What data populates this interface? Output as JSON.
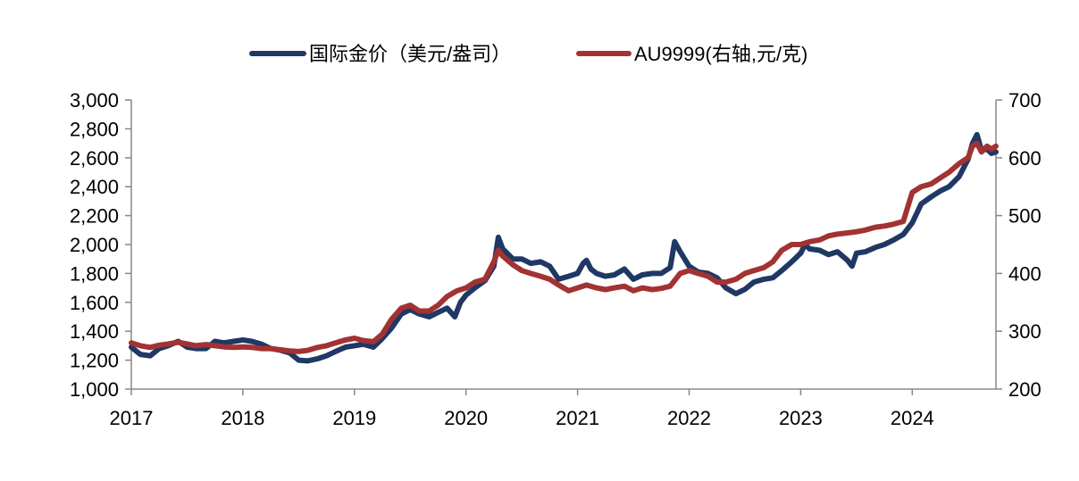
{
  "chart_data": {
    "type": "line",
    "title": "",
    "legend_position": "top-center",
    "grid": false,
    "x_axis": {
      "range": [
        2017.0,
        2024.75
      ],
      "ticks": [
        {
          "value": 2017,
          "label": "2017"
        },
        {
          "value": 2018,
          "label": "2018"
        },
        {
          "value": 2019,
          "label": "2019"
        },
        {
          "value": 2020,
          "label": "2020"
        },
        {
          "value": 2021,
          "label": "2021"
        },
        {
          "value": 2022,
          "label": "2022"
        },
        {
          "value": 2023,
          "label": "2023"
        },
        {
          "value": 2024,
          "label": "2024"
        }
      ]
    },
    "y_left": {
      "range": [
        1000,
        3000
      ],
      "ticks": [
        {
          "value": 1000,
          "label": "1,000"
        },
        {
          "value": 1200,
          "label": "1,200"
        },
        {
          "value": 1400,
          "label": "1,400"
        },
        {
          "value": 1600,
          "label": "1,600"
        },
        {
          "value": 1800,
          "label": "1,800"
        },
        {
          "value": 2000,
          "label": "2,000"
        },
        {
          "value": 2200,
          "label": "2,200"
        },
        {
          "value": 2400,
          "label": "2,400"
        },
        {
          "value": 2600,
          "label": "2,600"
        },
        {
          "value": 2800,
          "label": "2,800"
        },
        {
          "value": 3000,
          "label": "3,000"
        }
      ]
    },
    "y_right": {
      "range": [
        200,
        700
      ],
      "ticks": [
        {
          "value": 200,
          "label": "200"
        },
        {
          "value": 300,
          "label": "300"
        },
        {
          "value": 400,
          "label": "400"
        },
        {
          "value": 500,
          "label": "500"
        },
        {
          "value": 600,
          "label": "600"
        },
        {
          "value": 700,
          "label": "700"
        }
      ]
    },
    "series": [
      {
        "name": "国际金价（美元/盎司）",
        "axis": "left",
        "color": "#1f3864",
        "points": [
          [
            2017.0,
            1290
          ],
          [
            2017.08,
            1240
          ],
          [
            2017.17,
            1230
          ],
          [
            2017.25,
            1280
          ],
          [
            2017.33,
            1300
          ],
          [
            2017.42,
            1330
          ],
          [
            2017.5,
            1290
          ],
          [
            2017.58,
            1280
          ],
          [
            2017.67,
            1280
          ],
          [
            2017.75,
            1330
          ],
          [
            2017.83,
            1320
          ],
          [
            2017.92,
            1330
          ],
          [
            2018.0,
            1340
          ],
          [
            2018.08,
            1330
          ],
          [
            2018.17,
            1310
          ],
          [
            2018.25,
            1280
          ],
          [
            2018.33,
            1270
          ],
          [
            2018.42,
            1250
          ],
          [
            2018.5,
            1200
          ],
          [
            2018.58,
            1195
          ],
          [
            2018.67,
            1210
          ],
          [
            2018.75,
            1230
          ],
          [
            2018.83,
            1260
          ],
          [
            2018.92,
            1290
          ],
          [
            2019.0,
            1300
          ],
          [
            2019.08,
            1310
          ],
          [
            2019.17,
            1290
          ],
          [
            2019.25,
            1350
          ],
          [
            2019.33,
            1420
          ],
          [
            2019.42,
            1520
          ],
          [
            2019.5,
            1550
          ],
          [
            2019.58,
            1520
          ],
          [
            2019.67,
            1500
          ],
          [
            2019.75,
            1530
          ],
          [
            2019.83,
            1560
          ],
          [
            2019.9,
            1500
          ],
          [
            2019.95,
            1600
          ],
          [
            2020.0,
            1650
          ],
          [
            2020.08,
            1700
          ],
          [
            2020.17,
            1750
          ],
          [
            2020.25,
            1850
          ],
          [
            2020.29,
            2050
          ],
          [
            2020.33,
            1970
          ],
          [
            2020.42,
            1900
          ],
          [
            2020.5,
            1900
          ],
          [
            2020.58,
            1870
          ],
          [
            2020.67,
            1880
          ],
          [
            2020.75,
            1850
          ],
          [
            2020.83,
            1760
          ],
          [
            2020.92,
            1780
          ],
          [
            2021.0,
            1800
          ],
          [
            2021.05,
            1870
          ],
          [
            2021.08,
            1890
          ],
          [
            2021.12,
            1830
          ],
          [
            2021.17,
            1800
          ],
          [
            2021.25,
            1780
          ],
          [
            2021.33,
            1790
          ],
          [
            2021.42,
            1830
          ],
          [
            2021.5,
            1760
          ],
          [
            2021.58,
            1790
          ],
          [
            2021.67,
            1800
          ],
          [
            2021.75,
            1800
          ],
          [
            2021.83,
            1840
          ],
          [
            2021.87,
            2020
          ],
          [
            2021.92,
            1950
          ],
          [
            2022.0,
            1850
          ],
          [
            2022.08,
            1810
          ],
          [
            2022.17,
            1800
          ],
          [
            2022.25,
            1770
          ],
          [
            2022.33,
            1700
          ],
          [
            2022.42,
            1660
          ],
          [
            2022.5,
            1690
          ],
          [
            2022.58,
            1740
          ],
          [
            2022.67,
            1760
          ],
          [
            2022.75,
            1770
          ],
          [
            2022.83,
            1820
          ],
          [
            2022.92,
            1880
          ],
          [
            2023.0,
            1940
          ],
          [
            2023.04,
            2000
          ],
          [
            2023.08,
            1970
          ],
          [
            2023.17,
            1960
          ],
          [
            2023.25,
            1930
          ],
          [
            2023.33,
            1950
          ],
          [
            2023.42,
            1890
          ],
          [
            2023.46,
            1850
          ],
          [
            2023.5,
            1940
          ],
          [
            2023.58,
            1950
          ],
          [
            2023.67,
            1980
          ],
          [
            2023.75,
            2000
          ],
          [
            2023.83,
            2030
          ],
          [
            2023.92,
            2070
          ],
          [
            2024.0,
            2150
          ],
          [
            2024.08,
            2280
          ],
          [
            2024.17,
            2330
          ],
          [
            2024.25,
            2370
          ],
          [
            2024.33,
            2400
          ],
          [
            2024.42,
            2470
          ],
          [
            2024.5,
            2590
          ],
          [
            2024.54,
            2700
          ],
          [
            2024.58,
            2760
          ],
          [
            2024.62,
            2650
          ],
          [
            2024.67,
            2660
          ],
          [
            2024.71,
            2630
          ],
          [
            2024.75,
            2640
          ]
        ]
      },
      {
        "name": "AU9999(右轴,元/克)",
        "axis": "right",
        "color": "#a33232",
        "points": [
          [
            2017.0,
            280
          ],
          [
            2017.08,
            275
          ],
          [
            2017.17,
            272
          ],
          [
            2017.25,
            276
          ],
          [
            2017.33,
            278
          ],
          [
            2017.42,
            281
          ],
          [
            2017.5,
            278
          ],
          [
            2017.58,
            275
          ],
          [
            2017.67,
            277
          ],
          [
            2017.75,
            275
          ],
          [
            2017.83,
            273
          ],
          [
            2017.92,
            272
          ],
          [
            2018.0,
            273
          ],
          [
            2018.08,
            272
          ],
          [
            2018.17,
            270
          ],
          [
            2018.25,
            270
          ],
          [
            2018.33,
            268
          ],
          [
            2018.42,
            266
          ],
          [
            2018.5,
            265
          ],
          [
            2018.58,
            267
          ],
          [
            2018.67,
            272
          ],
          [
            2018.75,
            275
          ],
          [
            2018.83,
            280
          ],
          [
            2018.92,
            285
          ],
          [
            2019.0,
            288
          ],
          [
            2019.08,
            284
          ],
          [
            2019.17,
            282
          ],
          [
            2019.25,
            295
          ],
          [
            2019.33,
            320
          ],
          [
            2019.42,
            340
          ],
          [
            2019.5,
            345
          ],
          [
            2019.58,
            335
          ],
          [
            2019.67,
            335
          ],
          [
            2019.75,
            345
          ],
          [
            2019.83,
            360
          ],
          [
            2019.92,
            370
          ],
          [
            2020.0,
            375
          ],
          [
            2020.08,
            385
          ],
          [
            2020.17,
            390
          ],
          [
            2020.25,
            420
          ],
          [
            2020.29,
            440
          ],
          [
            2020.33,
            430
          ],
          [
            2020.42,
            415
          ],
          [
            2020.5,
            405
          ],
          [
            2020.58,
            400
          ],
          [
            2020.67,
            395
          ],
          [
            2020.75,
            390
          ],
          [
            2020.83,
            380
          ],
          [
            2020.92,
            370
          ],
          [
            2021.0,
            375
          ],
          [
            2021.08,
            380
          ],
          [
            2021.17,
            375
          ],
          [
            2021.25,
            372
          ],
          [
            2021.33,
            375
          ],
          [
            2021.42,
            378
          ],
          [
            2021.5,
            370
          ],
          [
            2021.58,
            375
          ],
          [
            2021.67,
            372
          ],
          [
            2021.75,
            374
          ],
          [
            2021.83,
            378
          ],
          [
            2021.92,
            400
          ],
          [
            2022.0,
            405
          ],
          [
            2022.08,
            400
          ],
          [
            2022.17,
            395
          ],
          [
            2022.25,
            385
          ],
          [
            2022.33,
            385
          ],
          [
            2022.42,
            390
          ],
          [
            2022.5,
            400
          ],
          [
            2022.58,
            405
          ],
          [
            2022.67,
            410
          ],
          [
            2022.75,
            420
          ],
          [
            2022.83,
            440
          ],
          [
            2022.92,
            450
          ],
          [
            2023.0,
            450
          ],
          [
            2023.08,
            455
          ],
          [
            2023.17,
            458
          ],
          [
            2023.25,
            465
          ],
          [
            2023.33,
            468
          ],
          [
            2023.42,
            470
          ],
          [
            2023.5,
            472
          ],
          [
            2023.58,
            475
          ],
          [
            2023.67,
            480
          ],
          [
            2023.75,
            482
          ],
          [
            2023.83,
            485
          ],
          [
            2023.92,
            490
          ],
          [
            2024.0,
            540
          ],
          [
            2024.08,
            550
          ],
          [
            2024.17,
            555
          ],
          [
            2024.25,
            565
          ],
          [
            2024.33,
            575
          ],
          [
            2024.42,
            590
          ],
          [
            2024.5,
            600
          ],
          [
            2024.54,
            620
          ],
          [
            2024.58,
            625
          ],
          [
            2024.62,
            610
          ],
          [
            2024.67,
            620
          ],
          [
            2024.71,
            615
          ],
          [
            2024.75,
            620
          ]
        ]
      }
    ]
  }
}
